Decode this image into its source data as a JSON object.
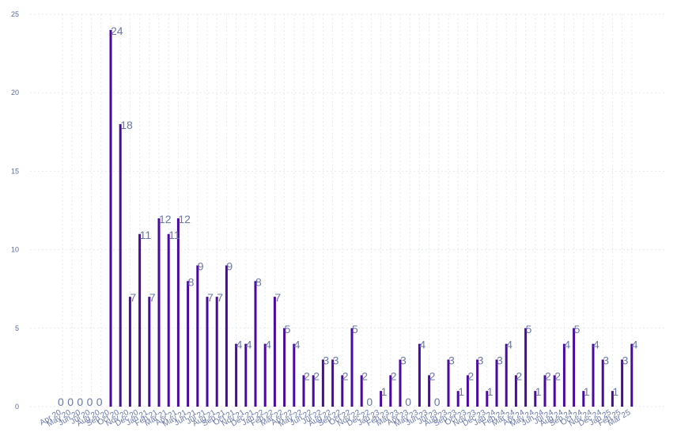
{
  "chart_data": {
    "type": "bar",
    "title": "",
    "xlabel": "",
    "ylabel": "",
    "ylim": [
      0,
      25
    ],
    "yticks": [
      0,
      5,
      10,
      15,
      20,
      25
    ],
    "grid": true,
    "bar_color": "#4a0aa0",
    "label_color": "#6a78a8",
    "categories": [
      "Apr 20",
      "May 20",
      "Jun 20",
      "Jul 20",
      "Aug 20",
      "Sep 20",
      "Oct 20",
      "Nov 20",
      "Dec 20",
      "Jan 21",
      "Feb 21",
      "Mar 21",
      "Apr 21",
      "May 21",
      "Jun 21",
      "Jul 21",
      "Aug 21",
      "Sep 21",
      "Oct 21",
      "Nov 21",
      "Dec 21",
      "Jan 22",
      "Feb 22",
      "Mar 22",
      "Apr 22",
      "May 22",
      "Jun 22",
      "Jul 22",
      "Aug 22",
      "Sep 22",
      "Oct 22",
      "Nov 22",
      "Dec 22",
      "Jan 23",
      "Feb 23",
      "Mar 23",
      "Apr 23",
      "May 23",
      "Jun 23",
      "Jul 23",
      "Aug 23",
      "Sep 23",
      "Oct 23",
      "Nov 23",
      "Dec 23",
      "Jan 24",
      "Feb 24",
      "Mar 24",
      "Apr 24",
      "May 24",
      "Jun 24",
      "Jul 24",
      "Aug 24",
      "Sep 24",
      "Oct 24",
      "Nov 24",
      "Dec 24",
      "Jan 25",
      "Feb 25",
      "Mar 25"
    ],
    "values": [
      0,
      0,
      0,
      0,
      0,
      24,
      18,
      7,
      11,
      7,
      12,
      11,
      12,
      8,
      9,
      7,
      7,
      9,
      4,
      4,
      8,
      4,
      7,
      5,
      4,
      2,
      2,
      3,
      3,
      2,
      5,
      2,
      0,
      1,
      2,
      3,
      0,
      4,
      2,
      0,
      3,
      1,
      2,
      3,
      1,
      3,
      4,
      2,
      5,
      1,
      2,
      2,
      4,
      5,
      1,
      4,
      3,
      1,
      3,
      4
    ]
  }
}
